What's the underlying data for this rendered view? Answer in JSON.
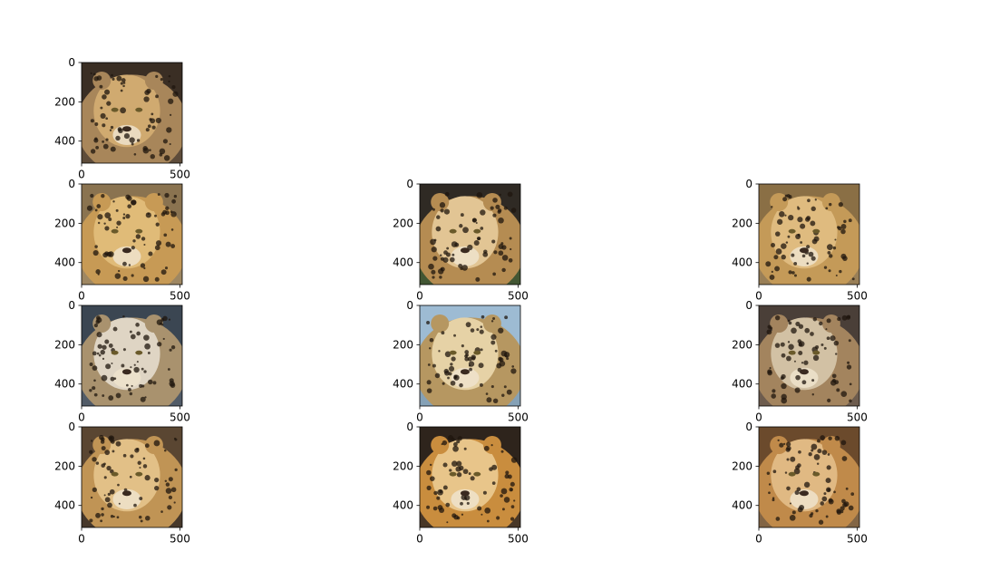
{
  "chart_data": {
    "type": "image_grid",
    "rows": 4,
    "cols": 3,
    "image_extent": {
      "x": [
        0,
        512
      ],
      "y": [
        0,
        512
      ]
    },
    "panels": [
      {
        "row": 0,
        "col": 0,
        "content": "jaguar-face-photo",
        "palette": [
          "#3a2e24",
          "#a8865a",
          "#d0aa70",
          "#6d5a44"
        ],
        "xticks": [
          {
            "value": 0,
            "label": "0"
          },
          {
            "value": 500,
            "label": "500"
          }
        ],
        "yticks": [
          {
            "value": 0,
            "label": "0"
          },
          {
            "value": 200,
            "label": "200"
          },
          {
            "value": 400,
            "label": "400"
          }
        ]
      },
      {
        "row": 1,
        "col": 0,
        "content": "jaguar-face-photo",
        "palette": [
          "#8a7350",
          "#c79a55",
          "#e0bb78",
          "#a7906a"
        ],
        "xticks": [
          {
            "value": 0,
            "label": "0"
          },
          {
            "value": 500,
            "label": "500"
          }
        ],
        "yticks": [
          {
            "value": 0,
            "label": "0"
          },
          {
            "value": 200,
            "label": "200"
          },
          {
            "value": 400,
            "label": "400"
          }
        ]
      },
      {
        "row": 1,
        "col": 1,
        "content": "jaguar-face-photo",
        "palette": [
          "#2f2a24",
          "#b58c52",
          "#e2c594",
          "#4a6a3a"
        ],
        "xticks": [
          {
            "value": 0,
            "label": "0"
          },
          {
            "value": 500,
            "label": "500"
          }
        ],
        "yticks": [
          {
            "value": 0,
            "label": "0"
          },
          {
            "value": 200,
            "label": "200"
          },
          {
            "value": 400,
            "label": "400"
          }
        ]
      },
      {
        "row": 1,
        "col": 2,
        "content": "jaguar-face-photo",
        "palette": [
          "#8a6f45",
          "#c49a58",
          "#dfbb7f",
          "#a08660"
        ],
        "xticks": [
          {
            "value": 0,
            "label": "0"
          },
          {
            "value": 500,
            "label": "500"
          }
        ],
        "yticks": [
          {
            "value": 0,
            "label": "0"
          },
          {
            "value": 200,
            "label": "200"
          },
          {
            "value": 400,
            "label": "400"
          }
        ]
      },
      {
        "row": 2,
        "col": 0,
        "content": "jaguar-face-photo",
        "palette": [
          "#3b4652",
          "#a9926e",
          "#dfd5c4",
          "#5b6470"
        ],
        "xticks": [
          {
            "value": 0,
            "label": "0"
          },
          {
            "value": 500,
            "label": "500"
          }
        ],
        "yticks": [
          {
            "value": 0,
            "label": "0"
          },
          {
            "value": 200,
            "label": "200"
          },
          {
            "value": 400,
            "label": "400"
          }
        ]
      },
      {
        "row": 2,
        "col": 1,
        "content": "jaguar-face-photo",
        "palette": [
          "#9dbbd3",
          "#b69761",
          "#e6d2a6",
          "#7a95aa"
        ],
        "xticks": [
          {
            "value": 0,
            "label": "0"
          },
          {
            "value": 500,
            "label": "500"
          }
        ],
        "yticks": [
          {
            "value": 0,
            "label": "0"
          },
          {
            "value": 200,
            "label": "200"
          },
          {
            "value": 400,
            "label": "400"
          }
        ]
      },
      {
        "row": 2,
        "col": 2,
        "content": "jaguar-face-photo",
        "palette": [
          "#4a3f38",
          "#a3845e",
          "#d2c1a4",
          "#7c6a58"
        ],
        "xticks": [
          {
            "value": 0,
            "label": "0"
          },
          {
            "value": 500,
            "label": "500"
          }
        ],
        "yticks": [
          {
            "value": 0,
            "label": "0"
          },
          {
            "value": 200,
            "label": "200"
          },
          {
            "value": 400,
            "label": "400"
          }
        ]
      },
      {
        "row": 3,
        "col": 0,
        "content": "jaguar-face-photo",
        "palette": [
          "#5a4632",
          "#c09455",
          "#e2c087",
          "#3d3228"
        ],
        "xticks": [
          {
            "value": 0,
            "label": "0"
          },
          {
            "value": 500,
            "label": "500"
          }
        ],
        "yticks": [
          {
            "value": 0,
            "label": "0"
          },
          {
            "value": 200,
            "label": "200"
          },
          {
            "value": 400,
            "label": "400"
          }
        ]
      },
      {
        "row": 3,
        "col": 1,
        "content": "jaguar-face-photo",
        "palette": [
          "#2e241c",
          "#c98d3e",
          "#e8c58a",
          "#54402c"
        ],
        "xticks": [
          {
            "value": 0,
            "label": "0"
          },
          {
            "value": 500,
            "label": "500"
          }
        ],
        "yticks": [
          {
            "value": 0,
            "label": "0"
          },
          {
            "value": 200,
            "label": "200"
          },
          {
            "value": 400,
            "label": "400"
          }
        ]
      },
      {
        "row": 3,
        "col": 2,
        "content": "jaguar-face-photo",
        "palette": [
          "#6b4a2c",
          "#c08a4a",
          "#e0b983",
          "#8c7050"
        ],
        "xticks": [
          {
            "value": 0,
            "label": "0"
          },
          {
            "value": 500,
            "label": "500"
          }
        ],
        "yticks": [
          {
            "value": 0,
            "label": "0"
          },
          {
            "value": 200,
            "label": "200"
          },
          {
            "value": 400,
            "label": "400"
          }
        ]
      }
    ]
  }
}
